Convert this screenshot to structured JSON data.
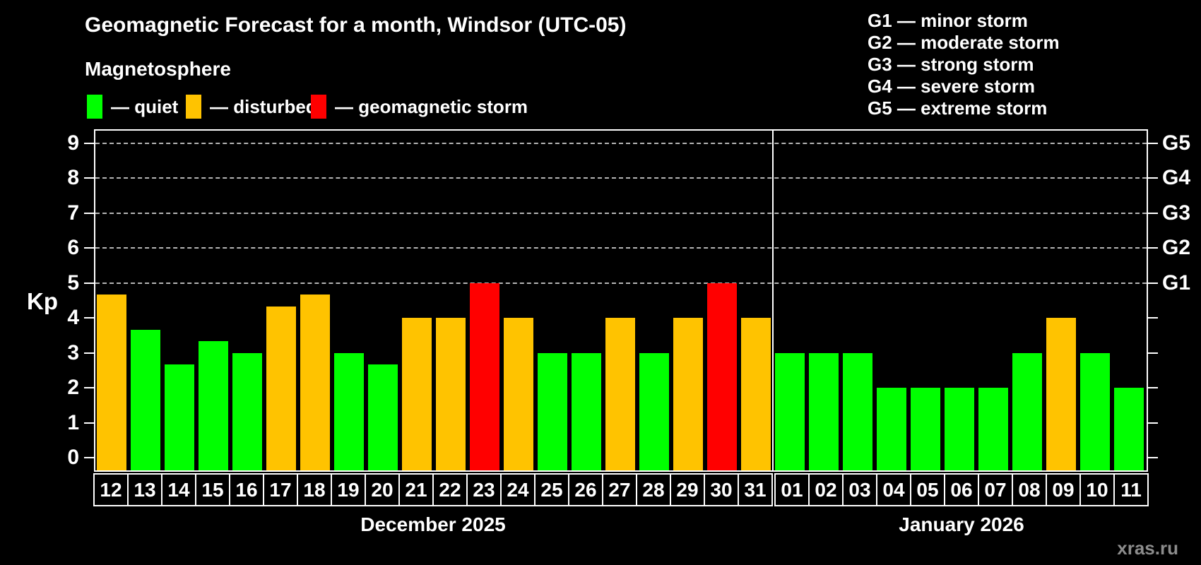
{
  "header": {
    "title": "Geomagnetic Forecast for a month, Windsor (UTC-05)",
    "subtitle": "Magnetosphere",
    "legend": [
      {
        "key": "quiet",
        "label": "— quiet"
      },
      {
        "key": "disturbed",
        "label": "— disturbed"
      },
      {
        "key": "storm",
        "label": "— geomagnetic storm"
      }
    ],
    "g_scale_legend": [
      "G1 — minor storm",
      "G2 — moderate storm",
      "G3 — strong storm",
      "G4 — severe storm",
      "G5 — extreme storm"
    ]
  },
  "chart_data": {
    "type": "bar",
    "ylabel": "Kp",
    "ylim": [
      0,
      9
    ],
    "yticks": [
      0,
      1,
      2,
      3,
      4,
      5,
      6,
      7,
      8,
      9
    ],
    "gridlines_at": [
      5,
      6,
      7,
      8,
      9
    ],
    "right_axis_labels": [
      {
        "kp": 5,
        "label": "G1"
      },
      {
        "kp": 6,
        "label": "G2"
      },
      {
        "kp": 7,
        "label": "G3"
      },
      {
        "kp": 8,
        "label": "G4"
      },
      {
        "kp": 9,
        "label": "G5"
      }
    ],
    "months": [
      {
        "label": "December 2025",
        "days": 20
      },
      {
        "label": "January 2026",
        "days": 11
      }
    ],
    "categories": [
      "12",
      "13",
      "14",
      "15",
      "16",
      "17",
      "18",
      "19",
      "20",
      "21",
      "22",
      "23",
      "24",
      "25",
      "26",
      "27",
      "28",
      "29",
      "30",
      "31",
      "01",
      "02",
      "03",
      "04",
      "05",
      "06",
      "07",
      "08",
      "09",
      "10",
      "11"
    ],
    "values": [
      4.67,
      3.67,
      2.67,
      3.33,
      3.0,
      4.33,
      4.67,
      3.0,
      2.67,
      4.0,
      4.0,
      5.0,
      4.0,
      3.0,
      3.0,
      4.0,
      3.0,
      4.0,
      5.0,
      4.0,
      3.0,
      3.0,
      3.0,
      2.0,
      2.0,
      2.0,
      2.0,
      3.0,
      4.0,
      3.0,
      2.0
    ],
    "statuses": [
      "disturbed",
      "quiet",
      "quiet",
      "quiet",
      "quiet",
      "disturbed",
      "disturbed",
      "quiet",
      "quiet",
      "disturbed",
      "disturbed",
      "storm",
      "disturbed",
      "quiet",
      "quiet",
      "disturbed",
      "quiet",
      "disturbed",
      "storm",
      "disturbed",
      "quiet",
      "quiet",
      "quiet",
      "quiet",
      "quiet",
      "quiet",
      "quiet",
      "quiet",
      "disturbed",
      "quiet",
      "quiet"
    ],
    "colors": {
      "quiet": "#00ff00",
      "disturbed": "#ffc300",
      "storm": "#ff0000"
    },
    "grid_color": "#b5b5b5"
  },
  "watermark": "xras.ru"
}
